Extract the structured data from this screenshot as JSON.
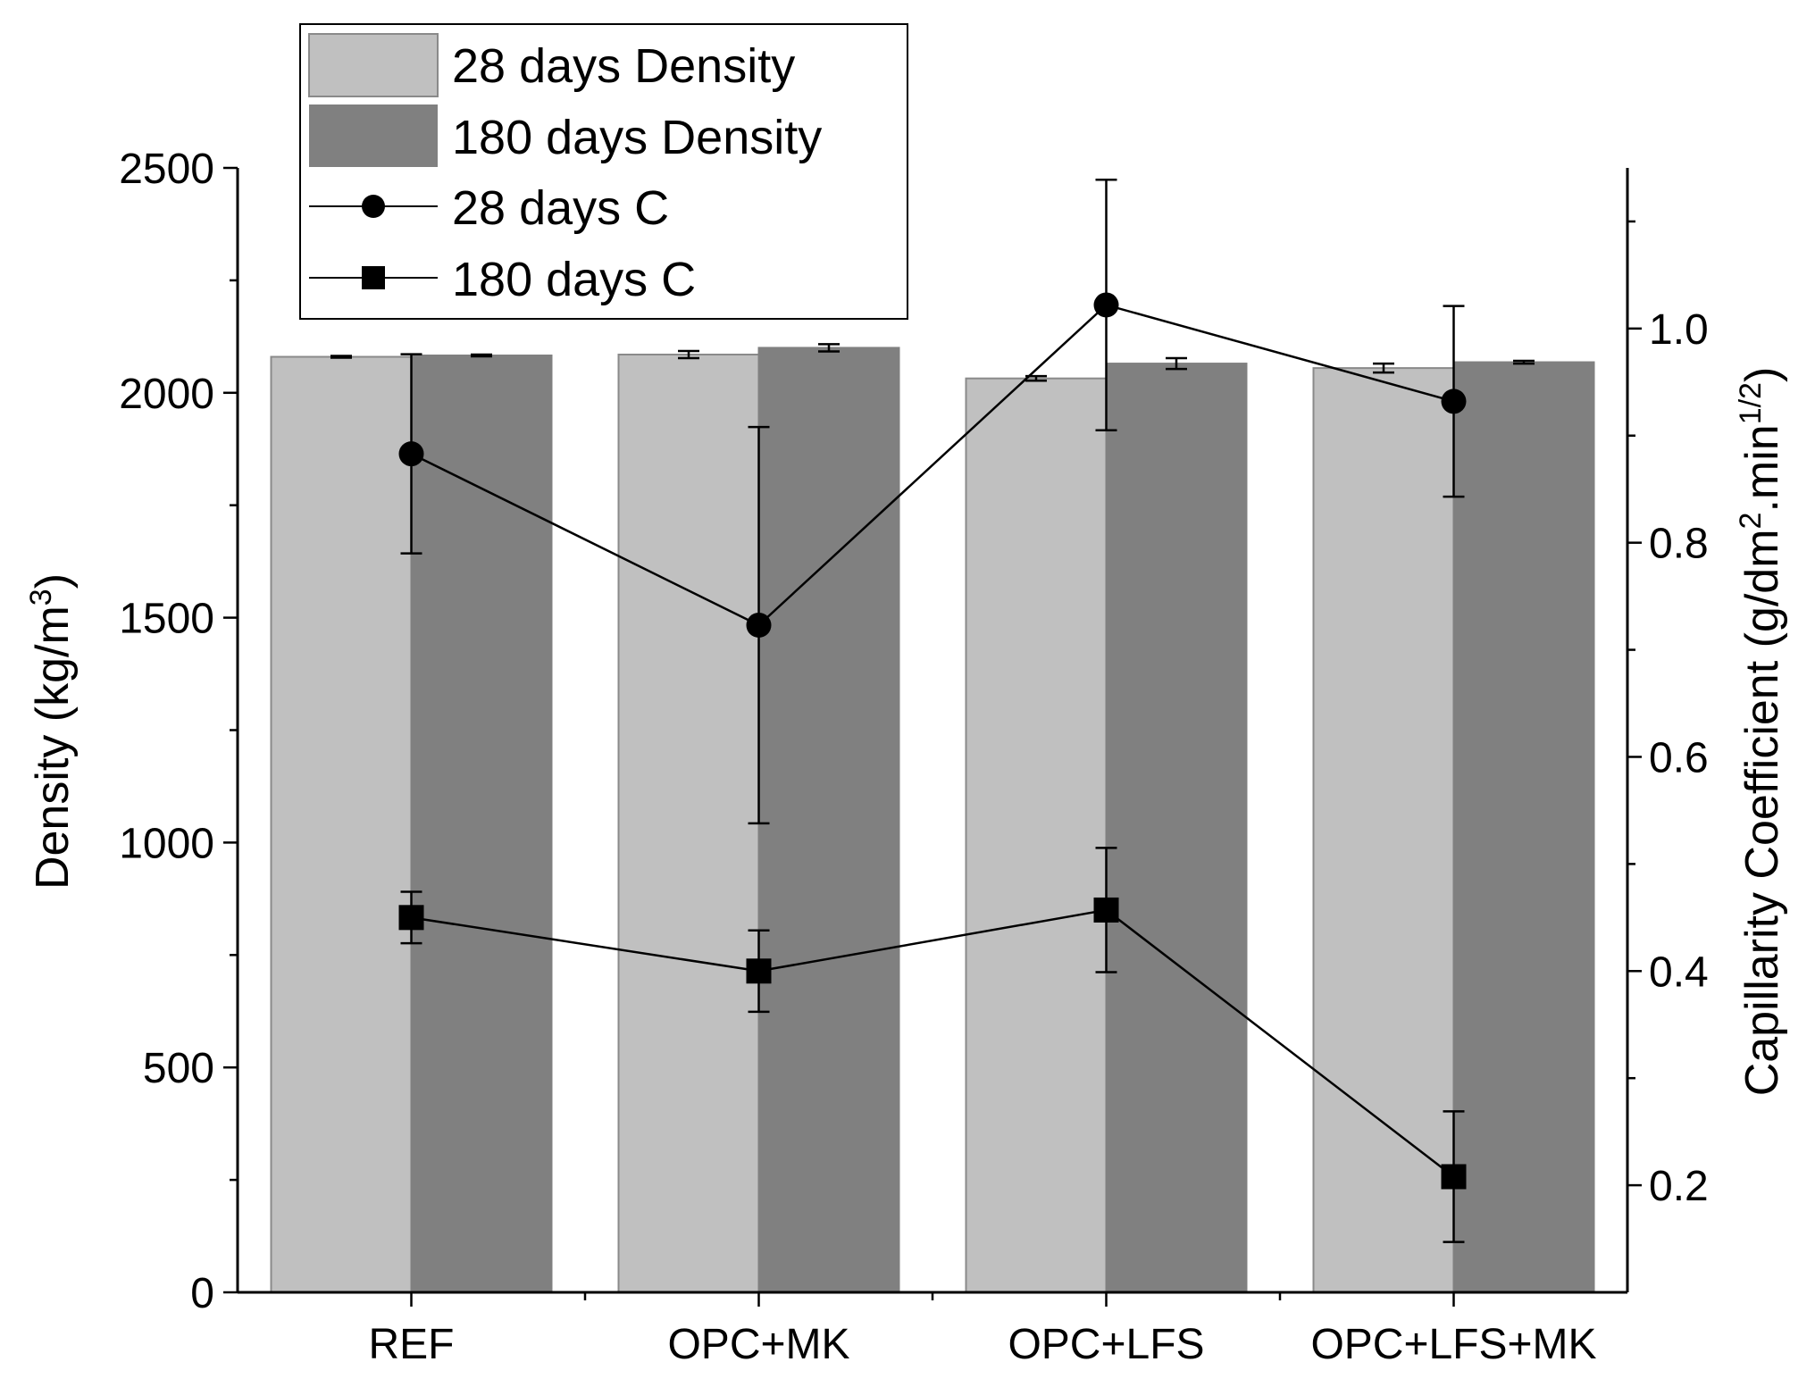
{
  "chart_data": {
    "type": "bar",
    "title": "",
    "categories": [
      "REF",
      "OPC+MK",
      "OPC+LFS",
      "OPC+LFS+MK"
    ],
    "left_axis": {
      "label": "Density (kg/m",
      "label_sup": "3",
      "label_end": ")",
      "ylim": [
        0,
        2500
      ],
      "major_ticks": [
        0,
        500,
        1000,
        1500,
        2000,
        2500
      ],
      "minor_step": 250
    },
    "right_axis": {
      "label": "Capillarity Coefficient (g/dm",
      "label_sup1": "2",
      "label_mid": ".min",
      "label_sup2": "1/2",
      "label_end": ")",
      "ylim": [
        0.1,
        1.15
      ],
      "major_ticks": [
        0.2,
        0.4,
        0.6,
        0.8,
        1.0
      ],
      "tick_labels": [
        "0.2",
        "0.4",
        "0.6",
        "0.8",
        "1.0"
      ],
      "minor_ticks": [
        0.3,
        0.5,
        0.7,
        0.9,
        1.1
      ]
    },
    "bar_series": [
      {
        "name": "28 days Density",
        "color": "#c0c0c0",
        "edge": "#8a8a8a",
        "values": [
          2080,
          2085,
          2032,
          2055
        ],
        "errors": [
          2,
          8,
          5,
          10
        ]
      },
      {
        "name": "180 days Density",
        "color": "#808080",
        "edge": "#808080",
        "values": [
          2083,
          2100,
          2065,
          2068
        ],
        "errors": [
          2,
          8,
          12,
          3
        ]
      }
    ],
    "line_series": [
      {
        "name": "28 days C",
        "marker": "circle",
        "color": "#000000",
        "values": [
          0.883,
          0.723,
          1.022,
          0.932
        ],
        "errors": [
          0.093,
          0.185,
          0.117,
          0.089
        ]
      },
      {
        "name": "180 days C",
        "marker": "square",
        "color": "#000000",
        "values": [
          0.45,
          0.4,
          0.457,
          0.208
        ],
        "errors": [
          0.024,
          0.038,
          0.058,
          0.061
        ]
      }
    ],
    "legend": {
      "position": "top-left",
      "entries": [
        "28 days Density",
        "180 days Density",
        "28 days C",
        "180 days C"
      ]
    }
  }
}
